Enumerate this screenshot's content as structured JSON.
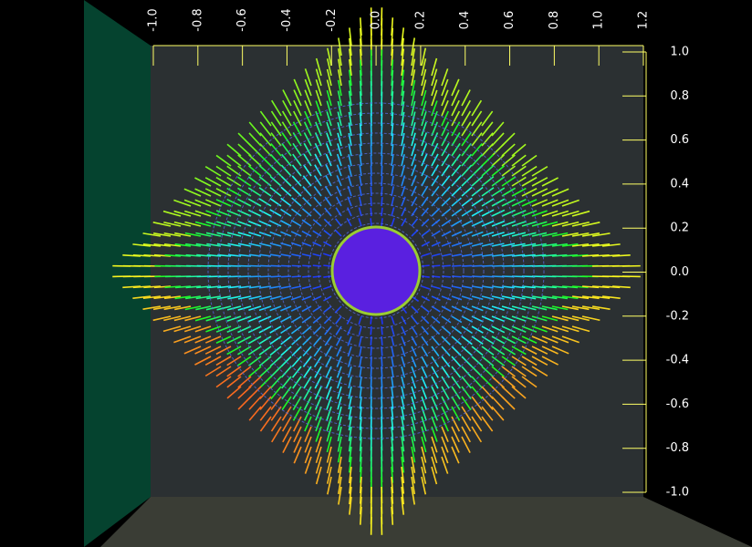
{
  "chart_data": {
    "type": "vector-field",
    "xlim": [
      -1.0,
      1.2
    ],
    "xticks": [
      {
        "value": -1.0,
        "label": "-1.0"
      },
      -0.8,
      -0.6,
      -0.4,
      -0.2,
      {
        "value": 0,
        "label": "0.0"
      },
      0.2,
      0.4,
      0.6,
      0.8,
      {
        "value": 1.0,
        "label": "1.0"
      },
      1.2
    ],
    "ylim": [
      -1.0,
      1.0
    ],
    "yticks": [
      {
        "value": 1.0,
        "label": "1.0"
      },
      0.8,
      0.6,
      0.4,
      0.2,
      {
        "value": 0,
        "label": "0.0"
      },
      -0.2,
      -0.4,
      -0.6,
      -0.8,
      {
        "value": -1.0,
        "label": "-1.0"
      }
    ],
    "axis_color": "#ffff66"
  }
}
